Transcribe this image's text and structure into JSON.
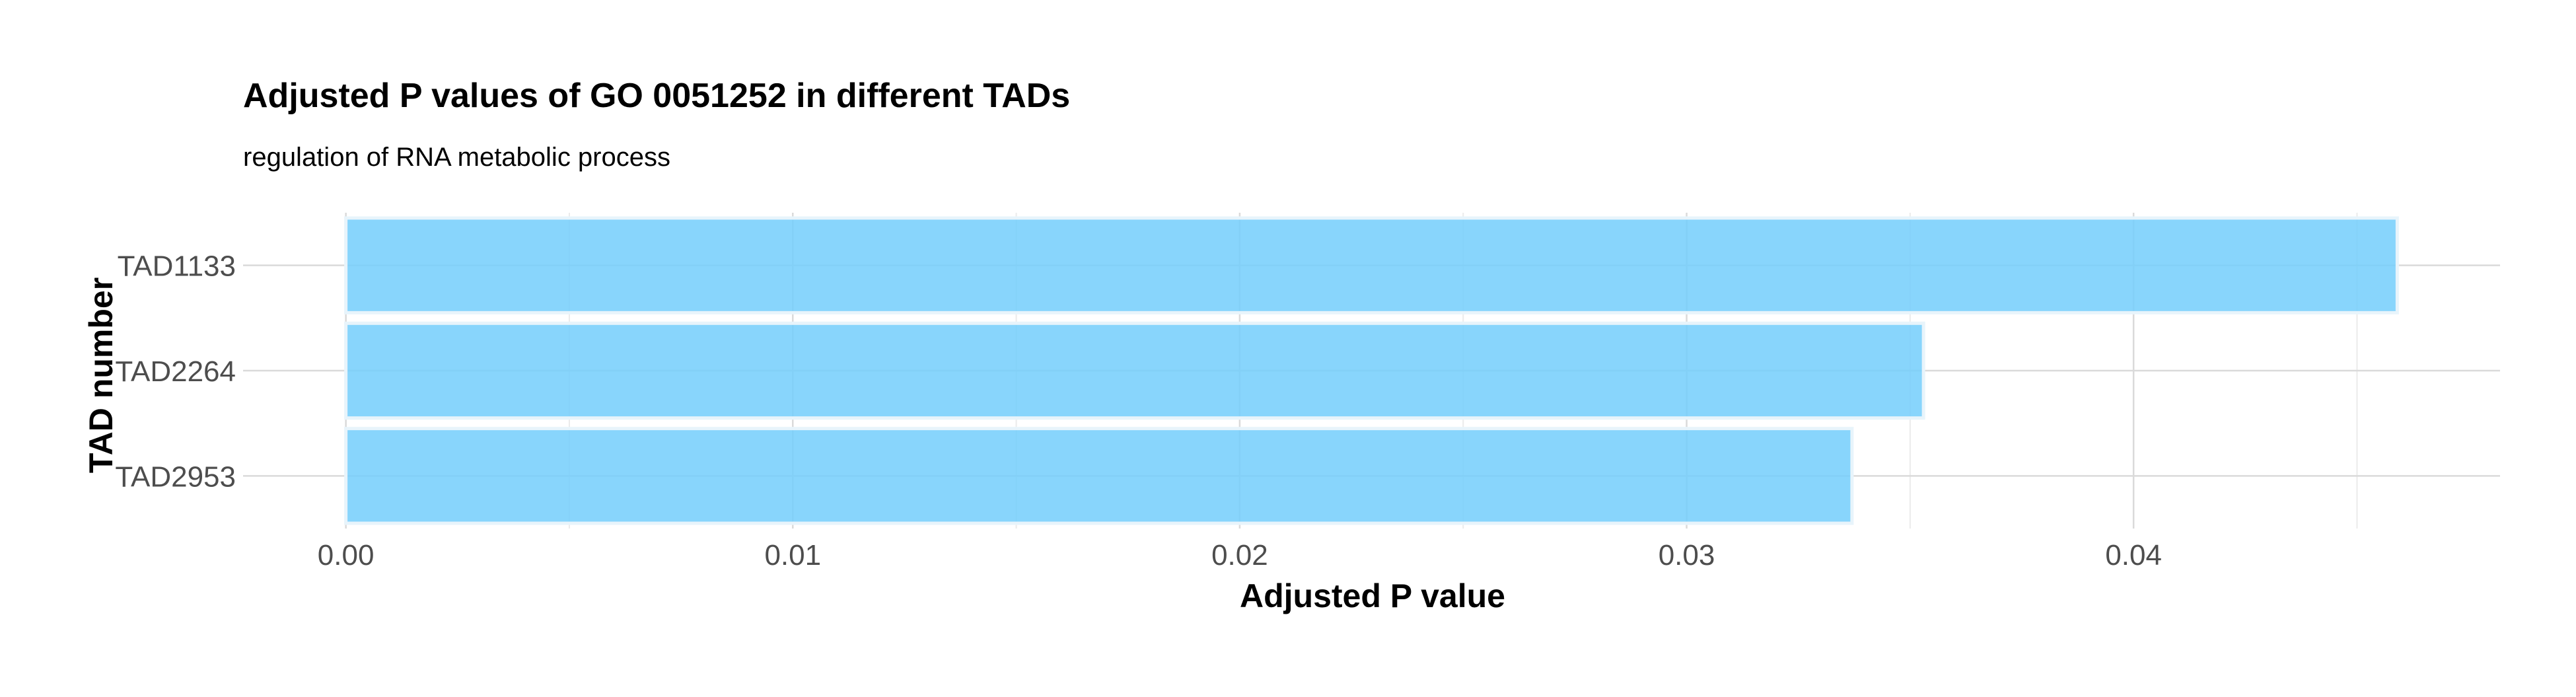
{
  "chart_data": {
    "type": "bar",
    "orientation": "horizontal",
    "title": "Adjusted P values of GO 0051252 in different TADs",
    "subtitle": "regulation of RNA metabolic process",
    "xlabel": "Adjusted P value",
    "ylabel": "TAD number",
    "categories": [
      "TAD1133",
      "TAD2264",
      "TAD2953"
    ],
    "values": [
      0.0459,
      0.0353,
      0.0337
    ],
    "xlim": [
      -0.0023,
      0.0482
    ],
    "x_ticks": [
      0.0,
      0.01,
      0.02,
      0.03,
      0.04
    ],
    "x_tick_labels": [
      "0.00",
      "0.01",
      "0.02",
      "0.03",
      "0.04"
    ],
    "grid": true,
    "legend": "none",
    "colors": {
      "bar_fill": "#73CEFB",
      "bar_stroke": "#E8F4FB",
      "grid_major": "#DADADA",
      "grid_minor": "#EBEBEB",
      "tick_text": "#4D4D4D",
      "title_text": "#000000"
    }
  }
}
